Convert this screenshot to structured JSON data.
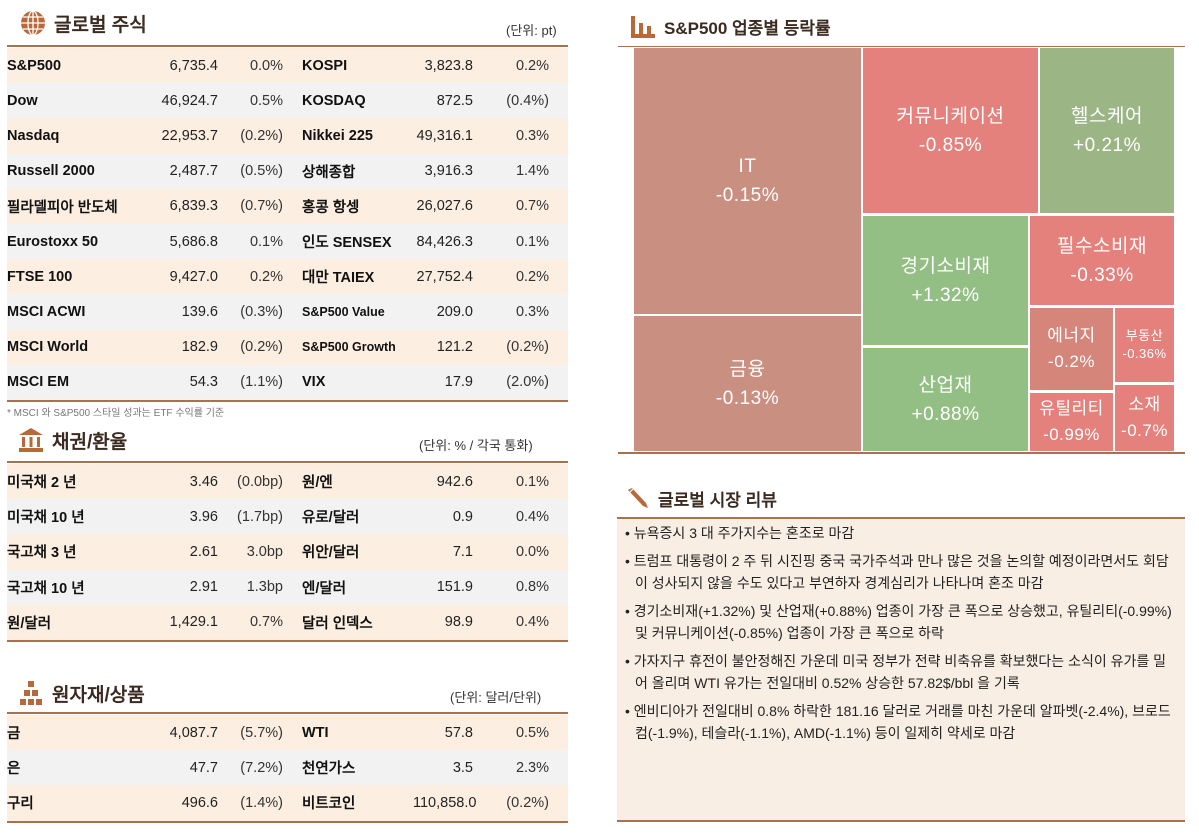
{
  "equities": {
    "title": "글로벌 주식",
    "unit": "(단위: pt)",
    "icon": "globe-icon",
    "rows": [
      [
        "S&P500",
        "6,735.4",
        "0.0%",
        "KOSPI",
        "3,823.8",
        "0.2%"
      ],
      [
        "Dow",
        "46,924.7",
        "0.5%",
        "KOSDAQ",
        "872.5",
        "(0.4%)"
      ],
      [
        "Nasdaq",
        "22,953.7",
        "(0.2%)",
        "Nikkei 225",
        "49,316.1",
        "0.3%"
      ],
      [
        "Russell 2000",
        "2,487.7",
        "(0.5%)",
        "상해종합",
        "3,916.3",
        "1.4%"
      ],
      [
        "필라델피아 반도체",
        "6,839.3",
        "(0.7%)",
        "홍콩 항셍",
        "26,027.6",
        "0.7%"
      ],
      [
        "Eurostoxx 50",
        "5,686.8",
        "0.1%",
        "인도 SENSEX",
        "84,426.3",
        "0.1%"
      ],
      [
        "FTSE 100",
        "9,427.0",
        "0.2%",
        "대만 TAIEX",
        "27,752.4",
        "0.2%"
      ],
      [
        "MSCI ACWI",
        "139.6",
        "(0.3%)",
        "S&P500 Value",
        "209.0",
        "0.3%"
      ],
      [
        "MSCI World",
        "182.9",
        "(0.2%)",
        "S&P500 Growth",
        "121.2",
        "(0.2%)"
      ],
      [
        "MSCI EM",
        "54.3",
        "(1.1%)",
        "VIX",
        "17.9",
        "(2.0%)"
      ]
    ],
    "footnote": "* MSCI 와 S&P500 스타일 성과는 ETF 수익률 기준"
  },
  "bonds": {
    "title": "채권/환율",
    "unit": "(단위: % / 각국 통화)",
    "icon": "bank-icon",
    "rows": [
      [
        "미국채 2 년",
        "3.46",
        "(0.0bp)",
        "원/엔",
        "942.6",
        "0.1%"
      ],
      [
        "미국채 10 년",
        "3.96",
        "(1.7bp)",
        "유로/달러",
        "0.9",
        "0.4%"
      ],
      [
        "국고채 3 년",
        "2.61",
        "3.0bp",
        "위안/달러",
        "7.1",
        "0.0%"
      ],
      [
        "국고채 10 년",
        "2.91",
        "1.3bp",
        "엔/달러",
        "151.9",
        "0.8%"
      ],
      [
        "원/달러",
        "1,429.1",
        "0.7%",
        "달러 인덱스",
        "98.9",
        "0.4%"
      ]
    ]
  },
  "commodities": {
    "title": "원자재/상품",
    "unit": "(단위: 달러/단위)",
    "icon": "gold-bars-icon",
    "rows": [
      [
        "금",
        "4,087.7",
        "(5.7%)",
        "WTI",
        "57.8",
        "0.5%"
      ],
      [
        "은",
        "47.7",
        "(7.2%)",
        "천연가스",
        "3.5",
        "2.3%"
      ],
      [
        "구리",
        "496.6",
        "(1.4%)",
        "비트코인",
        "110,858.0",
        "(0.2%)"
      ]
    ]
  },
  "treemap": {
    "title": "S&P500 업종별 등락률",
    "icon": "bar-chart-icon",
    "colors": {
      "mild_down": "#c98f80",
      "down": "#e4817c",
      "up": "#93bf84",
      "mild_up": "#9bb585",
      "energy": "#d5857a"
    },
    "sectors": [
      {
        "name": "IT",
        "change": "-0.15%"
      },
      {
        "name": "금융",
        "change": "-0.13%"
      },
      {
        "name": "커뮤니케이션",
        "change": "-0.85%"
      },
      {
        "name": "헬스케어",
        "change": "+0.21%"
      },
      {
        "name": "경기소비재",
        "change": "+1.32%"
      },
      {
        "name": "산업재",
        "change": "+0.88%"
      },
      {
        "name": "필수소비재",
        "change": "-0.33%"
      },
      {
        "name": "에너지",
        "change": "-0.2%"
      },
      {
        "name": "부동산",
        "change": "-0.36%"
      },
      {
        "name": "유틸리티",
        "change": "-0.99%"
      },
      {
        "name": "소재",
        "change": "-0.7%"
      }
    ]
  },
  "review": {
    "title": "글로벌 시장 리뷰",
    "icon": "pen-icon",
    "bullets": [
      "• 뉴욕증시 3 대 주가지수는 혼조로 마감",
      "• 트럼프 대통령이 2 주 뒤 시진핑 중국 국가주석과 만나 많은 것을 논의할 예정이라면서도 회담이 성사되지 않을 수도 있다고 부연하자 경계심리가 나타나며 혼조 마감",
      "• 경기소비재(+1.32%) 및 산업재(+0.88%) 업종이 가장 큰 폭으로 상승했고, 유틸리티(-0.99%) 및 커뮤니케이션(-0.85%) 업종이 가장 큰 폭으로 하락",
      "• 가자지구 휴전이 불안정해진 가운데 미국 정부가 전략 비축유를 확보했다는 소식이 유가를 밀어 올리며 WTI 유가는 전일대비 0.52% 상승한 57.82$/bbl 을 기록",
      "• 엔비디아가 전일대비 0.8% 하락한 181.16 달러로 거래를 마친 가운데 알파벳(-2.4%), 브로드컴(-1.9%), 테슬라(-1.1%), AMD(-1.1%) 등이 일제히 약세로 마감"
    ]
  }
}
